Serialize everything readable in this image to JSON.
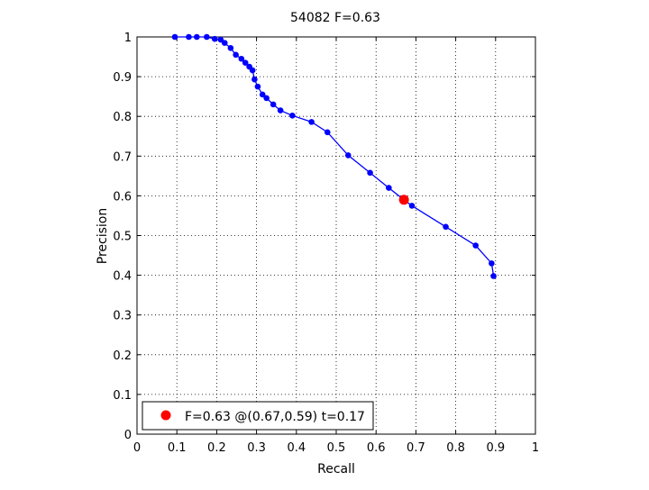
{
  "chart_data": {
    "type": "line",
    "title": "54082 F=0.63",
    "xlabel": "Recall",
    "ylabel": "Precision",
    "xlim": [
      0,
      1
    ],
    "ylim": [
      0,
      1
    ],
    "x_ticks": [
      "0",
      "0.1",
      "0.2",
      "0.3",
      "0.4",
      "0.5",
      "0.6",
      "0.7",
      "0.8",
      "0.9",
      "1"
    ],
    "y_ticks": [
      "0",
      "0.1",
      "0.2",
      "0.3",
      "0.4",
      "0.5",
      "0.6",
      "0.7",
      "0.8",
      "0.9",
      "1"
    ],
    "grid": true,
    "series": [
      {
        "color": "#0000ff",
        "points": [
          [
            0.095,
            1.0
          ],
          [
            0.13,
            1.0
          ],
          [
            0.15,
            1.0
          ],
          [
            0.175,
            1.0
          ],
          [
            0.195,
            0.995
          ],
          [
            0.21,
            0.993
          ],
          [
            0.22,
            0.985
          ],
          [
            0.235,
            0.972
          ],
          [
            0.248,
            0.955
          ],
          [
            0.262,
            0.945
          ],
          [
            0.272,
            0.935
          ],
          [
            0.282,
            0.925
          ],
          [
            0.29,
            0.916
          ],
          [
            0.295,
            0.893
          ],
          [
            0.303,
            0.875
          ],
          [
            0.315,
            0.855
          ],
          [
            0.325,
            0.846
          ],
          [
            0.342,
            0.83
          ],
          [
            0.36,
            0.815
          ],
          [
            0.39,
            0.802
          ],
          [
            0.438,
            0.786
          ],
          [
            0.478,
            0.76
          ],
          [
            0.53,
            0.702
          ],
          [
            0.585,
            0.658
          ],
          [
            0.632,
            0.62
          ],
          [
            0.67,
            0.59
          ],
          [
            0.69,
            0.575
          ],
          [
            0.775,
            0.522
          ],
          [
            0.85,
            0.475
          ],
          [
            0.89,
            0.43
          ],
          [
            0.895,
            0.398
          ]
        ]
      }
    ],
    "highlight": {
      "recall": 0.67,
      "precision": 0.59,
      "color": "#ff0000"
    },
    "legend": {
      "label": "F=0.63 @(0.67,0.59) t=0.17",
      "position": "bottom-left"
    }
  }
}
